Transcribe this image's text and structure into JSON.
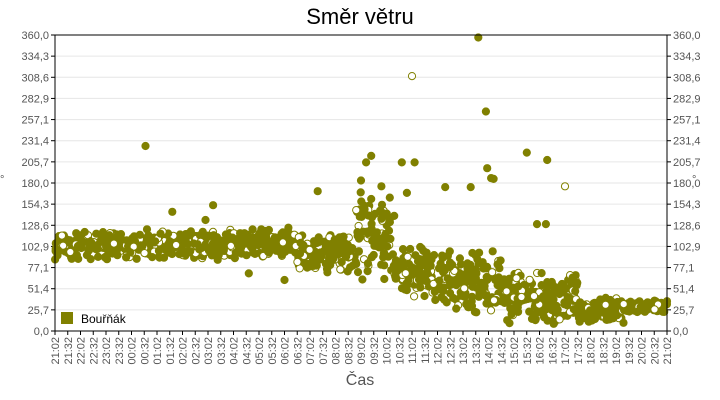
{
  "chart_data": {
    "type": "scatter",
    "title": "Směr větru",
    "xlabel": "Čas",
    "ylabel": "°",
    "ylabel_right": "°",
    "ylim": [
      0,
      360
    ],
    "y_ticks": [
      "0,0",
      "25,7",
      "51,4",
      "77,1",
      "102,9",
      "128,6",
      "154,3",
      "180,0",
      "205,7",
      "231,4",
      "257,1",
      "282,9",
      "308,6",
      "334,3",
      "360,0"
    ],
    "x_ticks": [
      "21:02",
      "21:32",
      "22:02",
      "22:32",
      "23:02",
      "23:32",
      "00:02",
      "00:32",
      "01:02",
      "01:32",
      "02:02",
      "02:32",
      "03:02",
      "03:32",
      "04:02",
      "04:32",
      "05:02",
      "05:32",
      "06:02",
      "06:32",
      "07:02",
      "07:32",
      "08:02",
      "08:32",
      "09:02",
      "09:32",
      "10:02",
      "10:32",
      "11:02",
      "11:32",
      "12:02",
      "12:32",
      "13:02",
      "13:32",
      "14:02",
      "14:32",
      "15:02",
      "15:32",
      "16:02",
      "16:32",
      "17:02",
      "17:32",
      "18:02",
      "18:32",
      "19:02",
      "19:32",
      "20:02",
      "20:32",
      "21:02"
    ],
    "grid": true,
    "legend": {
      "position": "bottom-left-inside",
      "entries": [
        "Bouřňák"
      ]
    },
    "series": [
      {
        "name": "Bouřňák",
        "color": "#808000",
        "note": "x = hours since 21:02; y = wind direction in degrees (approximate readings)",
        "outliers": [
          [
            3.55,
            225
          ],
          [
            4.6,
            145
          ],
          [
            6.2,
            153
          ],
          [
            5.9,
            135
          ],
          [
            7.6,
            70
          ],
          [
            9.0,
            62
          ],
          [
            10.3,
            170
          ],
          [
            12.0,
            183
          ],
          [
            12.2,
            205
          ],
          [
            12.4,
            213
          ],
          [
            12.8,
            176
          ],
          [
            13.6,
            205
          ],
          [
            13.8,
            168
          ],
          [
            14.0,
            310
          ],
          [
            14.1,
            205
          ],
          [
            13.3,
            140
          ],
          [
            13.1,
            122
          ],
          [
            15.3,
            175
          ],
          [
            16.3,
            175
          ],
          [
            16.6,
            357
          ],
          [
            16.9,
            267
          ],
          [
            16.95,
            198
          ],
          [
            17.1,
            186
          ],
          [
            17.2,
            185
          ],
          [
            18.5,
            217
          ],
          [
            18.9,
            130
          ],
          [
            19.3,
            208
          ],
          [
            19.25,
            130
          ],
          [
            20.0,
            176
          ],
          [
            20.2,
            68
          ],
          [
            20.3,
            65
          ]
        ],
        "bands": [
          {
            "x_from": 0.0,
            "x_to": 7.5,
            "y_center": 105,
            "y_spread": 14
          },
          {
            "x_from": 7.5,
            "x_to": 9.5,
            "y_center": 108,
            "y_spread": 14
          },
          {
            "x_from": 9.5,
            "x_to": 11.8,
            "y_center": 95,
            "y_spread": 18
          },
          {
            "x_from": 11.8,
            "x_to": 13.2,
            "y_center": 115,
            "y_spread": 40
          },
          {
            "x_from": 13.2,
            "x_to": 14.8,
            "y_center": 70,
            "y_spread": 25
          },
          {
            "x_from": 14.8,
            "x_to": 17.5,
            "y_center": 60,
            "y_spread": 30
          },
          {
            "x_from": 17.5,
            "x_to": 20.5,
            "y_center": 40,
            "y_spread": 25
          },
          {
            "x_from": 20.5,
            "x_to": 22.3,
            "y_center": 25,
            "y_spread": 12
          },
          {
            "x_from": 22.3,
            "x_to": 24.0,
            "y_center": 30,
            "y_spread": 6
          }
        ]
      }
    ]
  }
}
